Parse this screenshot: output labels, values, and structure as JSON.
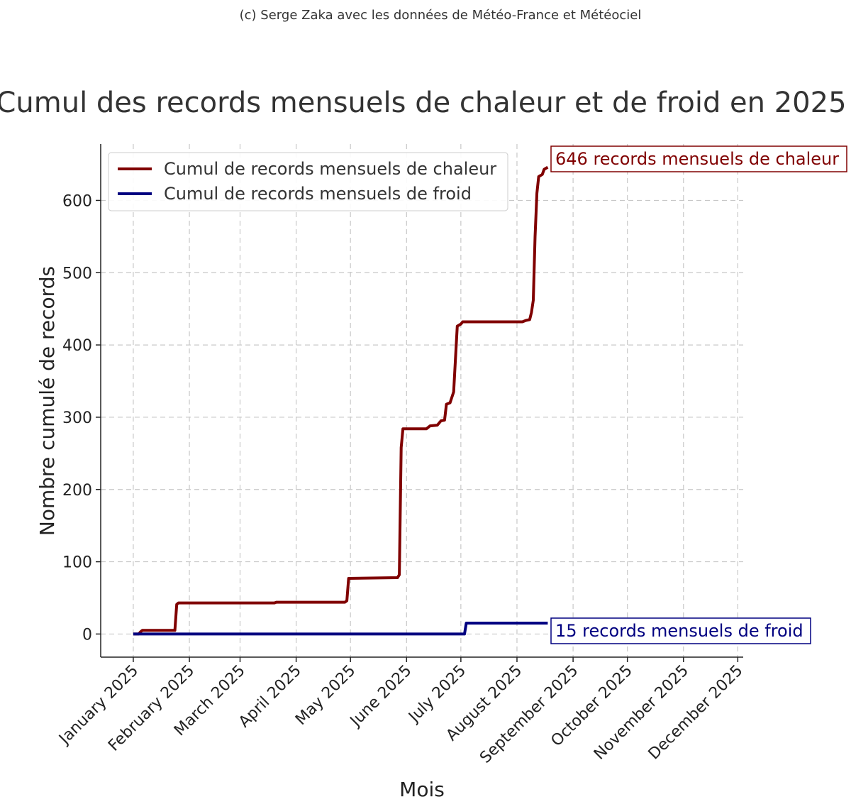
{
  "chart_data": {
    "type": "line",
    "credit": "(c) Serge Zaka avec les données de Météo-France et Météociel",
    "title": "Cumul des records mensuels de chaleur et de froid en 2025",
    "xlabel": "Mois",
    "ylabel": "Nombre cumulé de records",
    "x_ticks": [
      "January 2025",
      "February 2025",
      "March 2025",
      "April 2025",
      "May 2025",
      "June 2025",
      "July 2025",
      "August 2025",
      "September 2025",
      "October 2025",
      "November 2025",
      "December 2025"
    ],
    "y_ticks": [
      0,
      100,
      200,
      300,
      400,
      500,
      600
    ],
    "ylim": [
      -32,
      678
    ],
    "xlim": [
      "2024-12-14",
      "2025-12-04"
    ],
    "grid": true,
    "legend_position": "top-left",
    "series": [
      {
        "name": "Cumul de records mensuels de chaleur",
        "color": "#800000",
        "points": [
          [
            "2025-01-01",
            0
          ],
          [
            "2025-01-04",
            0
          ],
          [
            "2025-01-05",
            3
          ],
          [
            "2025-01-06",
            5
          ],
          [
            "2025-01-24",
            5
          ],
          [
            "2025-01-25",
            41
          ],
          [
            "2025-01-26",
            43
          ],
          [
            "2025-03-20",
            43
          ],
          [
            "2025-03-21",
            44
          ],
          [
            "2025-04-28",
            44
          ],
          [
            "2025-04-29",
            46
          ],
          [
            "2025-04-30",
            77
          ],
          [
            "2025-05-27",
            78
          ],
          [
            "2025-05-28",
            82
          ],
          [
            "2025-05-29",
            258
          ],
          [
            "2025-05-30",
            284
          ],
          [
            "2025-06-12",
            284
          ],
          [
            "2025-06-14",
            288
          ],
          [
            "2025-06-18",
            289
          ],
          [
            "2025-06-20",
            295
          ],
          [
            "2025-06-22",
            296
          ],
          [
            "2025-06-23",
            318
          ],
          [
            "2025-06-25",
            320
          ],
          [
            "2025-06-27",
            335
          ],
          [
            "2025-06-28",
            380
          ],
          [
            "2025-06-29",
            426
          ],
          [
            "2025-07-01",
            429
          ],
          [
            "2025-07-02",
            432
          ],
          [
            "2025-08-04",
            432
          ],
          [
            "2025-08-06",
            434
          ],
          [
            "2025-08-08",
            435
          ],
          [
            "2025-08-09",
            445
          ],
          [
            "2025-08-10",
            462
          ],
          [
            "2025-08-11",
            550
          ],
          [
            "2025-08-12",
            610
          ],
          [
            "2025-08-13",
            633
          ],
          [
            "2025-08-15",
            636
          ],
          [
            "2025-08-16",
            643
          ],
          [
            "2025-08-18",
            646
          ]
        ]
      },
      {
        "name": "Cumul de records mensuels de froid",
        "color": "#000080",
        "points": [
          [
            "2025-01-01",
            0
          ],
          [
            "2025-07-03",
            0
          ],
          [
            "2025-07-04",
            15
          ],
          [
            "2025-08-18",
            15
          ]
        ]
      }
    ],
    "annotations": [
      {
        "text": "646 records mensuels de chaleur",
        "color": "#800000"
      },
      {
        "text": "15 records mensuels de froid",
        "color": "#000080"
      }
    ]
  }
}
